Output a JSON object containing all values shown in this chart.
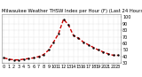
{
  "title": "Milwaukee Weather THSW Index per Hour (F) (Last 24 Hours)",
  "hours": [
    0,
    1,
    2,
    3,
    4,
    5,
    6,
    7,
    8,
    9,
    10,
    11,
    12,
    13,
    14,
    15,
    16,
    17,
    18,
    19,
    20,
    21,
    22,
    23
  ],
  "values": [
    38,
    36,
    35,
    35,
    36,
    37,
    38,
    40,
    43,
    50,
    62,
    75,
    97,
    88,
    72,
    68,
    62,
    58,
    54,
    50,
    47,
    44,
    42,
    42
  ],
  "line_color": "#cc0000",
  "marker_color": "#000000",
  "bg_color": "#ffffff",
  "plot_bg": "#ffffff",
  "grid_color": "#bbbbbb",
  "ylim": [
    30,
    105
  ],
  "yticks": [
    30,
    40,
    50,
    60,
    70,
    80,
    90,
    100
  ],
  "ytick_labels": [
    "30",
    "40",
    "50",
    "60",
    "70",
    "80",
    "90",
    "100"
  ],
  "xlim": [
    -0.5,
    23.5
  ],
  "xticks": [
    0,
    1,
    2,
    3,
    4,
    5,
    6,
    7,
    8,
    9,
    10,
    11,
    12,
    13,
    14,
    15,
    16,
    17,
    18,
    19,
    20,
    21,
    22,
    23
  ],
  "xlabel_fontsize": 3.5,
  "ylabel_fontsize": 3.5,
  "title_fontsize": 3.8,
  "line_width": 1.0,
  "dash_pattern": [
    3,
    1.5
  ],
  "marker_size": 0.7
}
